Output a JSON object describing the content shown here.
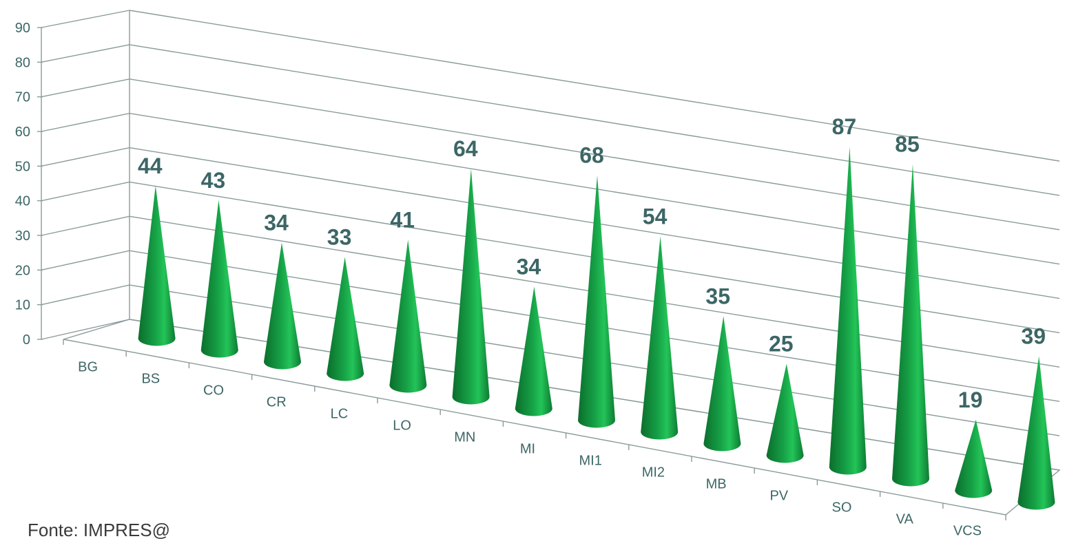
{
  "source_note": "Fonte: IMPRES@",
  "chart_data": {
    "type": "bar",
    "shape": "cone",
    "categories": [
      "BG",
      "BS",
      "CO",
      "CR",
      "LC",
      "LO",
      "MN",
      "MI",
      "MI1",
      "MI2",
      "MB",
      "PV",
      "SO",
      "VA",
      "VCS"
    ],
    "values": [
      44,
      43,
      34,
      33,
      41,
      64,
      34,
      68,
      54,
      35,
      25,
      87,
      85,
      19,
      39
    ],
    "yticks": [
      0,
      10,
      20,
      30,
      40,
      50,
      60,
      70,
      80,
      90
    ],
    "ylim": [
      0,
      90
    ],
    "grid": true,
    "legend": "none",
    "title": "",
    "xlabel": "",
    "ylabel": "",
    "colors": {
      "cone_dark": "#0b6e2c",
      "cone_mid": "#16a046",
      "cone_light": "#23c458",
      "value_label": "#3d6666",
      "axis_text": "#3d6666",
      "grid": "#8a9a9a"
    }
  }
}
